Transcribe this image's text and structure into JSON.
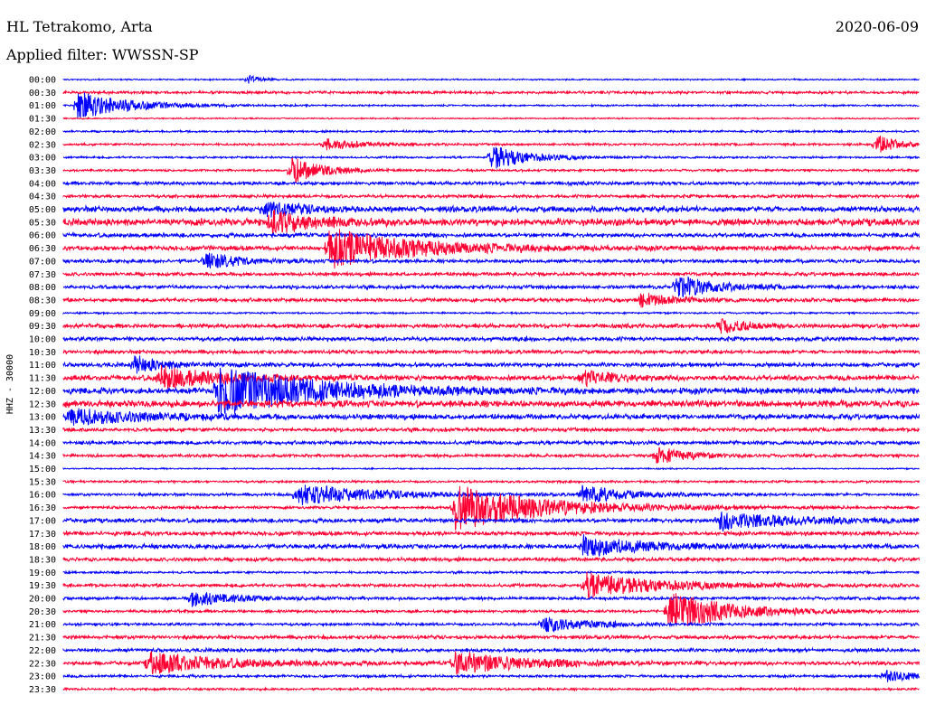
{
  "header": {
    "station": "HL Tetrakomo, Arta",
    "date": "2020-06-09",
    "filter": "Applied filter: WWSSN-SP"
  },
  "chart_data": {
    "type": "line",
    "title": "",
    "xlabel": "",
    "ylabel": "HHZ - 30000",
    "colors": [
      "#0000ff",
      "#ff0033"
    ],
    "time_labels": [
      "00:00",
      "00:30",
      "01:00",
      "01:30",
      "02:00",
      "02:30",
      "03:00",
      "03:30",
      "04:00",
      "04:30",
      "05:00",
      "05:30",
      "06:00",
      "06:30",
      "07:00",
      "07:30",
      "08:00",
      "08:30",
      "09:00",
      "09:30",
      "10:00",
      "10:30",
      "11:00",
      "11:30",
      "12:00",
      "12:30",
      "13:00",
      "13:30",
      "14:00",
      "14:30",
      "15:00",
      "15:30",
      "16:00",
      "16:30",
      "17:00",
      "17:30",
      "18:00",
      "18:30",
      "19:00",
      "19:30",
      "20:00",
      "20:30",
      "21:00",
      "21:30",
      "22:00",
      "22:30",
      "23:00",
      "23:30"
    ],
    "trace_minutes": 30,
    "noise": [
      0.6,
      1.2,
      0.8,
      0.6,
      0.9,
      1.0,
      0.9,
      1.0,
      1.5,
      1.4,
      2.5,
      3.0,
      1.8,
      2.0,
      1.6,
      1.5,
      1.6,
      1.6,
      0.8,
      1.8,
      1.8,
      1.6,
      1.8,
      2.2,
      2.6,
      3.0,
      2.2,
      1.6,
      1.6,
      1.4,
      0.6,
      1.0,
      1.2,
      1.2,
      1.8,
      1.8,
      2.0,
      1.6,
      1.0,
      1.4,
      1.4,
      1.2,
      1.2,
      1.6,
      1.6,
      1.6,
      1.2,
      1.0
    ],
    "events": [
      {
        "trace": 0,
        "minute": 6.5,
        "amp": 5,
        "dur": 0.4
      },
      {
        "trace": 2,
        "minute": 0.5,
        "amp": 16,
        "dur": 1.6
      },
      {
        "trace": 5,
        "minute": 9.2,
        "amp": 6,
        "dur": 1.2
      },
      {
        "trace": 5,
        "minute": 28.5,
        "amp": 10,
        "dur": 0.8
      },
      {
        "trace": 6,
        "minute": 15.0,
        "amp": 14,
        "dur": 1.2
      },
      {
        "trace": 7,
        "minute": 8.0,
        "amp": 15,
        "dur": 1.0
      },
      {
        "trace": 10,
        "minute": 7.0,
        "amp": 8,
        "dur": 1.2
      },
      {
        "trace": 11,
        "minute": 7.3,
        "amp": 14,
        "dur": 1.4
      },
      {
        "trace": 13,
        "minute": 9.3,
        "amp": 22,
        "dur": 3.0
      },
      {
        "trace": 14,
        "minute": 5.0,
        "amp": 10,
        "dur": 1.0
      },
      {
        "trace": 16,
        "minute": 21.5,
        "amp": 14,
        "dur": 1.2
      },
      {
        "trace": 17,
        "minute": 20.2,
        "amp": 8,
        "dur": 1.0
      },
      {
        "trace": 19,
        "minute": 23.0,
        "amp": 8,
        "dur": 1.0
      },
      {
        "trace": 22,
        "minute": 2.5,
        "amp": 9,
        "dur": 1.0
      },
      {
        "trace": 23,
        "minute": 3.4,
        "amp": 12,
        "dur": 2.0
      },
      {
        "trace": 23,
        "minute": 18.2,
        "amp": 9,
        "dur": 1.0
      },
      {
        "trace": 24,
        "minute": 5.4,
        "amp": 26,
        "dur": 3.5
      },
      {
        "trace": 26,
        "minute": 0.2,
        "amp": 9,
        "dur": 2.5
      },
      {
        "trace": 29,
        "minute": 20.8,
        "amp": 10,
        "dur": 1.0
      },
      {
        "trace": 32,
        "minute": 8.2,
        "amp": 12,
        "dur": 2.5
      },
      {
        "trace": 32,
        "minute": 18.2,
        "amp": 10,
        "dur": 1.5
      },
      {
        "trace": 33,
        "minute": 13.7,
        "amp": 26,
        "dur": 3.0
      },
      {
        "trace": 34,
        "minute": 23.0,
        "amp": 10,
        "dur": 2.5
      },
      {
        "trace": 36,
        "minute": 18.2,
        "amp": 12,
        "dur": 2.0
      },
      {
        "trace": 39,
        "minute": 18.3,
        "amp": 14,
        "dur": 2.5
      },
      {
        "trace": 40,
        "minute": 4.5,
        "amp": 8,
        "dur": 1.5
      },
      {
        "trace": 41,
        "minute": 21.2,
        "amp": 22,
        "dur": 2.0
      },
      {
        "trace": 42,
        "minute": 16.8,
        "amp": 9,
        "dur": 1.5
      },
      {
        "trace": 45,
        "minute": 3.0,
        "amp": 12,
        "dur": 2.5
      },
      {
        "trace": 45,
        "minute": 13.7,
        "amp": 12,
        "dur": 2.5
      },
      {
        "trace": 46,
        "minute": 28.8,
        "amp": 6,
        "dur": 1.0
      }
    ]
  }
}
